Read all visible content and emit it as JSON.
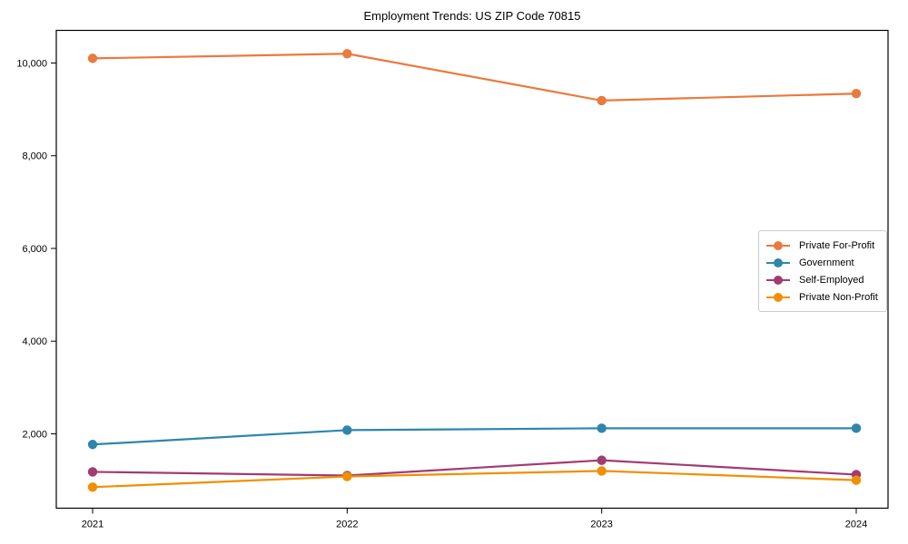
{
  "chart_data": {
    "type": "line",
    "title": "Employment Trends: US ZIP Code 70815",
    "xlabel": "",
    "ylabel": "",
    "x": [
      "2021",
      "2022",
      "2023",
      "2024"
    ],
    "y_ticks": [
      2000,
      4000,
      6000,
      8000,
      10000
    ],
    "y_tick_labels": [
      "2,000",
      "4,000",
      "6,000",
      "8,000",
      "10,000"
    ],
    "ylim": [
      396,
      10704
    ],
    "grid": false,
    "legend_position": "center-right",
    "series": [
      {
        "name": "Private For-Profit",
        "color": "#ea7a3d",
        "values": [
          10100,
          10200,
          9190,
          9340
        ]
      },
      {
        "name": "Government",
        "color": "#2e86ab",
        "values": [
          1770,
          2080,
          2120,
          2120
        ]
      },
      {
        "name": "Self-Employed",
        "color": "#a23b72",
        "values": [
          1180,
          1100,
          1430,
          1120
        ]
      },
      {
        "name": "Private Non-Profit",
        "color": "#f18f01",
        "values": [
          850,
          1080,
          1200,
          1000
        ]
      }
    ]
  }
}
